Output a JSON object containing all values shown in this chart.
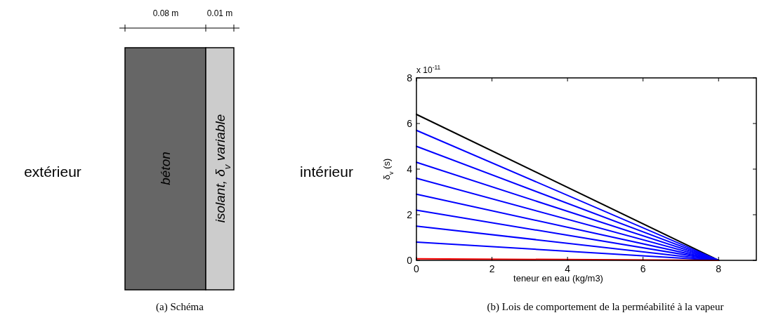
{
  "chart_data": [
    {
      "type": "other",
      "title": "(a) Schéma",
      "annotations": [
        "0.08 m",
        "0.01 m",
        "extérieur",
        "béton",
        "isolant, δ$_{v}$ variable",
        "intérieur"
      ]
    },
    {
      "type": "line",
      "title": "(b) Lois de comportement de la perméabilité à la vapeur",
      "xlabel": "teneur en eau (kg/m3)",
      "ylabel": "δ$_{v}$ (s)",
      "annotations": [
        "x 10$^{-11}$"
      ],
      "xlim": [
        0,
        9
      ],
      "xticks": [
        0,
        2,
        4,
        6,
        8
      ],
      "ylim": [
        0,
        8
      ],
      "yticks": [
        0,
        2,
        4,
        6,
        8
      ],
      "x": [
        0,
        8
      ],
      "series": [
        {
          "color": "#000000",
          "values": [
            6.4,
            0
          ]
        },
        {
          "color": "#0000ff",
          "values": [
            5.7,
            0
          ]
        },
        {
          "color": "#0000ff",
          "values": [
            5.0,
            0
          ]
        },
        {
          "color": "#0000ff",
          "values": [
            4.3,
            0
          ]
        },
        {
          "color": "#0000ff",
          "values": [
            3.6,
            0
          ]
        },
        {
          "color": "#0000ff",
          "values": [
            2.9,
            0
          ]
        },
        {
          "color": "#0000ff",
          "values": [
            2.2,
            0
          ]
        },
        {
          "color": "#0000ff",
          "values": [
            1.5,
            0
          ]
        },
        {
          "color": "#0000ff",
          "values": [
            0.8,
            0
          ]
        },
        {
          "color": "#ff0000",
          "values": [
            0.07,
            0
          ]
        }
      ]
    }
  ]
}
